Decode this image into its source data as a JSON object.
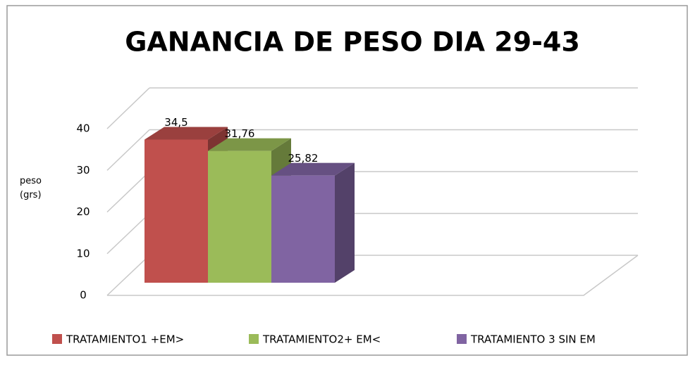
{
  "chart_data": {
    "type": "bar3d",
    "title": "GANANCIA DE PESO DIA 29-43",
    "y_label": "peso (grs)",
    "categories": [
      null
    ],
    "series": [
      {
        "name": "TRATAMIENTO1 +EM>",
        "color": "#c0504d",
        "values": [
          34.5
        ],
        "value_labels": [
          "34,5"
        ]
      },
      {
        "name": "TRATAMIENTO2+ EM<",
        "color": "#9bbb59",
        "values": [
          31.76
        ],
        "value_labels": [
          "31,76"
        ]
      },
      {
        "name": "TRATAMIENTO 3 SIN EM",
        "color": "#8064a2",
        "values": [
          25.82
        ],
        "value_labels": [
          "25,82"
        ]
      }
    ],
    "ylim": [
      0,
      40
    ],
    "yticks": [
      0,
      10,
      20,
      30,
      40
    ],
    "grid": true,
    "legend": "bottom"
  }
}
